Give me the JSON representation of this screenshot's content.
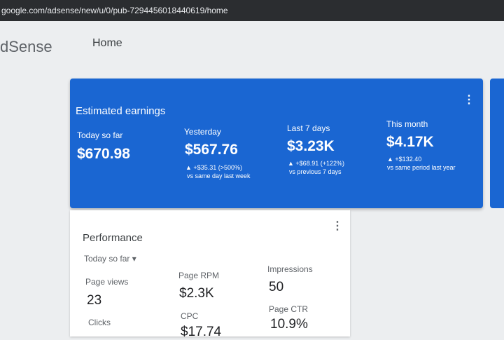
{
  "browser": {
    "url": "google.com/adsense/new/u/0/pub-7294456018440619/home"
  },
  "header": {
    "logo": "dSense",
    "nav": "Home"
  },
  "earnings": {
    "title": "Estimated earnings",
    "items": [
      {
        "label": "Today so far",
        "value": "$670.98"
      },
      {
        "label": "Yesterday",
        "value": "$567.76",
        "change": "+$35.31 (>500%)",
        "compare": "vs same day last week"
      },
      {
        "label": "Last 7 days",
        "value": "$3.23K",
        "change": "+$68.91 (+122%)",
        "compare": "vs previous 7 days"
      },
      {
        "label": "This month",
        "value": "$4.17K",
        "change": "+$132.40",
        "compare": "vs same period last year"
      }
    ]
  },
  "performance": {
    "title": "Performance",
    "range": "Today so far",
    "metrics": [
      {
        "label": "Page views",
        "value": "23"
      },
      {
        "label": "Page RPM",
        "value": "$2.3K"
      },
      {
        "label": "Impressions",
        "value": "50"
      },
      {
        "label": "Clicks"
      },
      {
        "label": "CPC",
        "value": "$17.74"
      },
      {
        "label": "Page CTR",
        "value": "10.9%"
      }
    ]
  }
}
